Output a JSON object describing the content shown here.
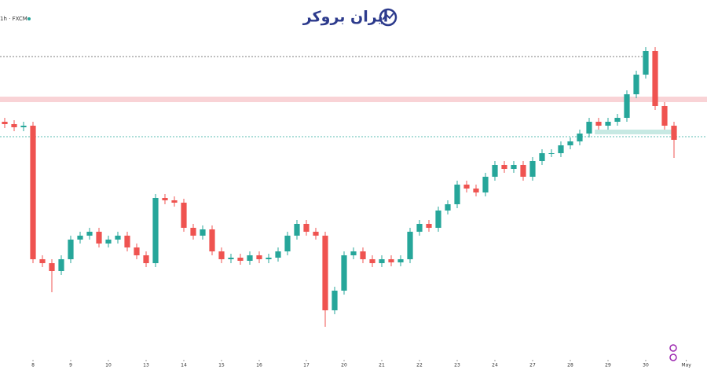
{
  "chart_data": {
    "type": "candlestick",
    "symbol": "1h · FXCM",
    "brand": "ایران بروکر",
    "xlim": [
      -0.5,
      74.5
    ],
    "ylim": [
      0,
      471
    ],
    "xticks": [
      {
        "value": 3,
        "label": "8"
      },
      {
        "value": 7,
        "label": "9"
      },
      {
        "value": 11,
        "label": "10"
      },
      {
        "value": 15,
        "label": "13"
      },
      {
        "value": 19,
        "label": "14"
      },
      {
        "value": 23,
        "label": "15"
      },
      {
        "value": 27,
        "label": "16"
      },
      {
        "value": 32,
        "label": "17"
      },
      {
        "value": 36,
        "label": "20"
      },
      {
        "value": 40,
        "label": "21"
      },
      {
        "value": 44,
        "label": "22"
      },
      {
        "value": 48,
        "label": "23"
      },
      {
        "value": 52,
        "label": "24"
      },
      {
        "value": 56,
        "label": "27"
      },
      {
        "value": 60,
        "label": "28"
      },
      {
        "value": 64,
        "label": "29"
      },
      {
        "value": 68,
        "label": "30"
      },
      {
        "value": 72.3,
        "label": "May"
      }
    ],
    "up_color": "#26a69a",
    "down_color": "#ef5350",
    "candles": {
      "open": [
        316,
        313,
        309,
        311,
        141,
        136,
        126,
        141,
        166,
        171,
        176,
        161,
        166,
        171,
        156,
        146,
        136,
        219,
        216,
        213,
        181,
        171,
        179,
        151,
        141,
        143,
        139,
        146,
        141,
        143,
        151,
        171,
        186,
        176,
        171,
        76,
        101,
        146,
        151,
        141,
        136,
        141,
        137,
        141,
        176,
        186,
        181,
        203,
        211,
        236,
        231,
        226,
        246,
        261,
        256,
        261,
        246,
        266,
        276,
        276,
        286,
        291,
        301,
        316,
        311,
        316,
        321,
        351,
        376,
        406,
        336,
        311
      ],
      "high": [
        321,
        318,
        316,
        316,
        146,
        141,
        146,
        171,
        176,
        181,
        181,
        171,
        176,
        176,
        161,
        151,
        224,
        224,
        221,
        218,
        186,
        184,
        184,
        156,
        148,
        148,
        151,
        151,
        148,
        156,
        176,
        191,
        191,
        181,
        176,
        106,
        151,
        156,
        156,
        146,
        146,
        146,
        146,
        181,
        191,
        191,
        208,
        216,
        241,
        241,
        236,
        251,
        266,
        266,
        266,
        266,
        271,
        281,
        281,
        291,
        296,
        306,
        321,
        321,
        321,
        326,
        356,
        381,
        411,
        411,
        341,
        316
      ],
      "low": [
        308,
        304,
        304,
        136,
        131,
        99,
        121,
        136,
        161,
        166,
        156,
        156,
        161,
        151,
        141,
        131,
        131,
        211,
        208,
        176,
        166,
        166,
        146,
        136,
        136,
        134,
        134,
        136,
        136,
        138,
        146,
        166,
        171,
        166,
        55,
        71,
        96,
        141,
        136,
        131,
        131,
        132,
        132,
        136,
        171,
        176,
        176,
        198,
        206,
        226,
        221,
        221,
        241,
        251,
        251,
        241,
        241,
        261,
        271,
        271,
        281,
        286,
        296,
        306,
        306,
        311,
        316,
        346,
        371,
        331,
        306,
        270
      ],
      "close": [
        313,
        309,
        311,
        141,
        136,
        126,
        141,
        166,
        171,
        176,
        161,
        166,
        171,
        156,
        146,
        136,
        219,
        216,
        213,
        181,
        171,
        179,
        151,
        141,
        143,
        139,
        146,
        141,
        143,
        151,
        171,
        186,
        176,
        171,
        76,
        101,
        146,
        151,
        141,
        136,
        141,
        137,
        141,
        176,
        186,
        181,
        203,
        211,
        236,
        231,
        226,
        246,
        261,
        256,
        261,
        246,
        266,
        276,
        276,
        286,
        291,
        301,
        316,
        311,
        316,
        321,
        351,
        376,
        406,
        336,
        311,
        293
      ]
    },
    "levels": [
      {
        "value": 399,
        "color": "#555555",
        "x_end": 67.8
      },
      {
        "value": 297,
        "color": "#26a69a",
        "x_end": 74.5
      }
    ],
    "bands": [
      {
        "from": 341,
        "to": 348,
        "color": "#f8c8cc",
        "x_start": -0.5,
        "x_end": 74.5
      },
      {
        "from": 300,
        "to": 306,
        "color": "#b9e3dc",
        "x_start": 62.6,
        "x_end": 71
      }
    ]
  }
}
